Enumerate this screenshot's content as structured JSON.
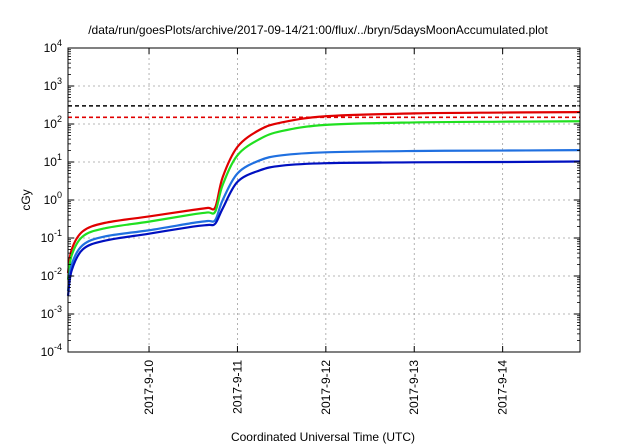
{
  "chart_data": {
    "type": "line",
    "title": "/data/run/goesPlots/archive/2017-09-14/21:00/flux/../bryn/5daysMoonAccumulated.plot",
    "xlabel": "Coordinated Universal Time (UTC)",
    "ylabel": "cGy",
    "y_scale": "log",
    "ylim": [
      0.0001,
      10000
    ],
    "xlim": [
      "2017-09-09 02:00",
      "2017-09-14 21:00"
    ],
    "x_ticks": [
      "2017-9-10",
      "2017-9-11",
      "2017-9-12",
      "2017-9-13",
      "2017-9-14"
    ],
    "y_ticks": [
      {
        "base": "10",
        "exp": "-4"
      },
      {
        "base": "10",
        "exp": "-3"
      },
      {
        "base": "10",
        "exp": "-2"
      },
      {
        "base": "10",
        "exp": "-1"
      },
      {
        "base": "10",
        "exp": "0"
      },
      {
        "base": "10",
        "exp": "1"
      },
      {
        "base": "10",
        "exp": "2"
      },
      {
        "base": "10",
        "exp": "3"
      },
      {
        "base": "10",
        "exp": "4"
      }
    ],
    "grid": true,
    "reference_lines": [
      {
        "y": 300,
        "color": "#000000",
        "style": "dashed"
      },
      {
        "y": 150,
        "color": "#e00000",
        "style": "dashed"
      }
    ],
    "series": [
      {
        "color": "#e00000",
        "x": [
          "2017-09-09 02:00",
          "2017-09-09 03:00",
          "2017-09-09 06:00",
          "2017-09-09 12:00",
          "2017-09-10 00:00",
          "2017-09-10 12:00",
          "2017-09-10 16:00",
          "2017-09-10 18:00",
          "2017-09-10 20:00",
          "2017-09-11 00:00",
          "2017-09-11 06:00",
          "2017-09-11 12:00",
          "2017-09-12 00:00",
          "2017-09-13 00:00",
          "2017-09-14 00:00",
          "2017-09-14 21:00"
        ],
        "y": [
          0.012,
          0.05,
          0.15,
          0.25,
          0.37,
          0.55,
          0.62,
          0.65,
          4,
          25,
          70,
          110,
          160,
          190,
          200,
          205
        ]
      },
      {
        "color": "#20e020",
        "x": [
          "2017-09-09 02:00",
          "2017-09-09 03:00",
          "2017-09-09 06:00",
          "2017-09-09 12:00",
          "2017-09-10 00:00",
          "2017-09-10 12:00",
          "2017-09-10 16:00",
          "2017-09-10 18:00",
          "2017-09-10 20:00",
          "2017-09-11 00:00",
          "2017-09-11 06:00",
          "2017-09-11 12:00",
          "2017-09-12 00:00",
          "2017-09-13 00:00",
          "2017-09-14 00:00",
          "2017-09-14 21:00"
        ],
        "y": [
          0.008,
          0.035,
          0.11,
          0.18,
          0.27,
          0.42,
          0.47,
          0.5,
          2.5,
          15,
          40,
          65,
          95,
          110,
          115,
          118
        ]
      },
      {
        "color": "#2070e0",
        "x": [
          "2017-09-09 02:00",
          "2017-09-09 03:00",
          "2017-09-09 06:00",
          "2017-09-09 12:00",
          "2017-09-10 00:00",
          "2017-09-10 12:00",
          "2017-09-10 16:00",
          "2017-09-10 18:00",
          "2017-09-10 20:00",
          "2017-09-11 00:00",
          "2017-09-11 06:00",
          "2017-09-11 12:00",
          "2017-09-12 00:00",
          "2017-09-13 00:00",
          "2017-09-14 00:00",
          "2017-09-14 21:00"
        ],
        "y": [
          0.004,
          0.02,
          0.065,
          0.11,
          0.16,
          0.25,
          0.28,
          0.3,
          1.0,
          5,
          11,
          15,
          18,
          19.5,
          20,
          20.5
        ]
      },
      {
        "color": "#0010c0",
        "x": [
          "2017-09-09 02:00",
          "2017-09-09 03:00",
          "2017-09-09 06:00",
          "2017-09-09 12:00",
          "2017-09-10 00:00",
          "2017-09-10 12:00",
          "2017-09-10 16:00",
          "2017-09-10 18:00",
          "2017-09-10 20:00",
          "2017-09-11 00:00",
          "2017-09-11 06:00",
          "2017-09-11 12:00",
          "2017-09-12 00:00",
          "2017-09-13 00:00",
          "2017-09-14 00:00",
          "2017-09-14 21:00"
        ],
        "y": [
          0.003,
          0.014,
          0.05,
          0.085,
          0.13,
          0.2,
          0.22,
          0.24,
          0.6,
          3,
          6,
          8,
          9.3,
          9.8,
          10,
          10.3
        ]
      }
    ]
  }
}
